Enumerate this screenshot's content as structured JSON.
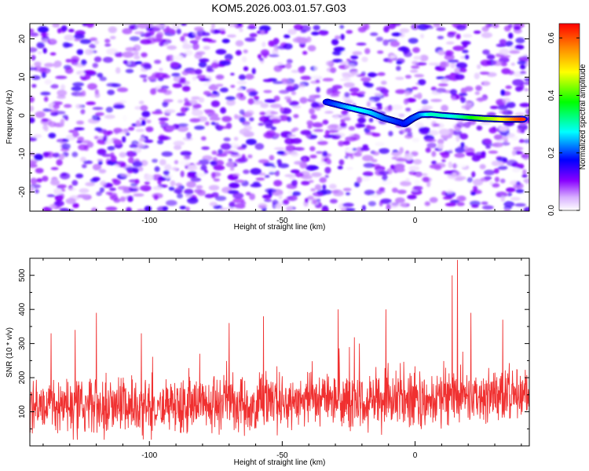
{
  "title": "KOM5.2026.003.01.57.G03",
  "colors": {
    "snr_line": "#f03030",
    "background": "#ffffff",
    "axis": "#000000"
  },
  "chart_data": [
    {
      "type": "heatmap",
      "title": "",
      "xlabel": "Height of straight line (km)",
      "ylabel": "Frequency (Hz)",
      "xlim": [
        -145,
        43
      ],
      "ylim": [
        -25,
        24
      ],
      "xticks": [
        -100,
        -50,
        0
      ],
      "xtick_labels": [
        "-100",
        "-50",
        "0"
      ],
      "yticks": [
        -20,
        -10,
        0,
        10,
        20
      ],
      "ytick_labels": [
        "-20",
        "-10",
        "0",
        "10",
        "20"
      ],
      "colorbar": {
        "label": "Normalized spectral amplitude",
        "range": [
          0.0,
          0.65
        ],
        "ticks": [
          0.0,
          0.2,
          0.4,
          0.6
        ],
        "tick_labels": [
          "0.0",
          "0.2",
          "0.4",
          "0.6"
        ],
        "colormap": [
          "#ffffff",
          "#8800ff",
          "#0000ff",
          "#00ffff",
          "#00ff00",
          "#ffff00",
          "#ff8800",
          "#ff0000"
        ]
      },
      "background_noise_amplitude_range": [
        0.0,
        0.15
      ],
      "signal_track": {
        "description_x_start": -33,
        "points": [
          {
            "x": -33,
            "y": 3.5,
            "amp": 0.18
          },
          {
            "x": -28,
            "y": 2.6,
            "amp": 0.22
          },
          {
            "x": -22,
            "y": 1.6,
            "amp": 0.28
          },
          {
            "x": -17,
            "y": 0.8,
            "amp": 0.26
          },
          {
            "x": -12,
            "y": -0.6,
            "amp": 0.22
          },
          {
            "x": -8,
            "y": -1.4,
            "amp": 0.2
          },
          {
            "x": -4,
            "y": -2.2,
            "amp": 0.18
          },
          {
            "x": -1,
            "y": -0.8,
            "amp": 0.2
          },
          {
            "x": 2,
            "y": 0.2,
            "amp": 0.22
          },
          {
            "x": 6,
            "y": 0.3,
            "amp": 0.3
          },
          {
            "x": 10,
            "y": 0.0,
            "amp": 0.3
          },
          {
            "x": 14,
            "y": -0.2,
            "amp": 0.28
          },
          {
            "x": 18,
            "y": -0.4,
            "amp": 0.32
          },
          {
            "x": 22,
            "y": -0.6,
            "amp": 0.38
          },
          {
            "x": 26,
            "y": -0.8,
            "amp": 0.42
          },
          {
            "x": 30,
            "y": -0.9,
            "amp": 0.45
          },
          {
            "x": 34,
            "y": -1.0,
            "amp": 0.5
          },
          {
            "x": 38,
            "y": -1.0,
            "amp": 0.58
          },
          {
            "x": 41,
            "y": -1.0,
            "amp": 0.62
          }
        ]
      }
    },
    {
      "type": "line",
      "title": "",
      "xlabel": "Height of straight line (km)",
      "ylabel": "SNR (10 * v/v)",
      "xlim": [
        -145,
        43
      ],
      "ylim": [
        0,
        550
      ],
      "xticks": [
        -100,
        -50,
        0
      ],
      "xtick_labels": [
        "-100",
        "-50",
        "0"
      ],
      "yticks": [
        100,
        200,
        300,
        400,
        500
      ],
      "ytick_labels": [
        "100",
        "200",
        "300",
        "400",
        "500"
      ],
      "series": [
        {
          "name": "SNR",
          "color": "#f03030",
          "n_points": 1600,
          "baseline_mean_left": 115,
          "baseline_mean_right": 150,
          "noise_spread": 70,
          "peaks": [
            {
              "x": -137,
              "y": 330
            },
            {
              "x": -128,
              "y": 340
            },
            {
              "x": -120,
              "y": 390
            },
            {
              "x": -103,
              "y": 330
            },
            {
              "x": -81,
              "y": 270
            },
            {
              "x": -70,
              "y": 360
            },
            {
              "x": -57,
              "y": 380
            },
            {
              "x": -29,
              "y": 400
            },
            {
              "x": -21,
              "y": 300
            },
            {
              "x": -11,
              "y": 400
            },
            {
              "x": 14,
              "y": 500
            },
            {
              "x": 16,
              "y": 545
            },
            {
              "x": 21,
              "y": 390
            },
            {
              "x": 33,
              "y": 370
            }
          ]
        }
      ]
    }
  ]
}
